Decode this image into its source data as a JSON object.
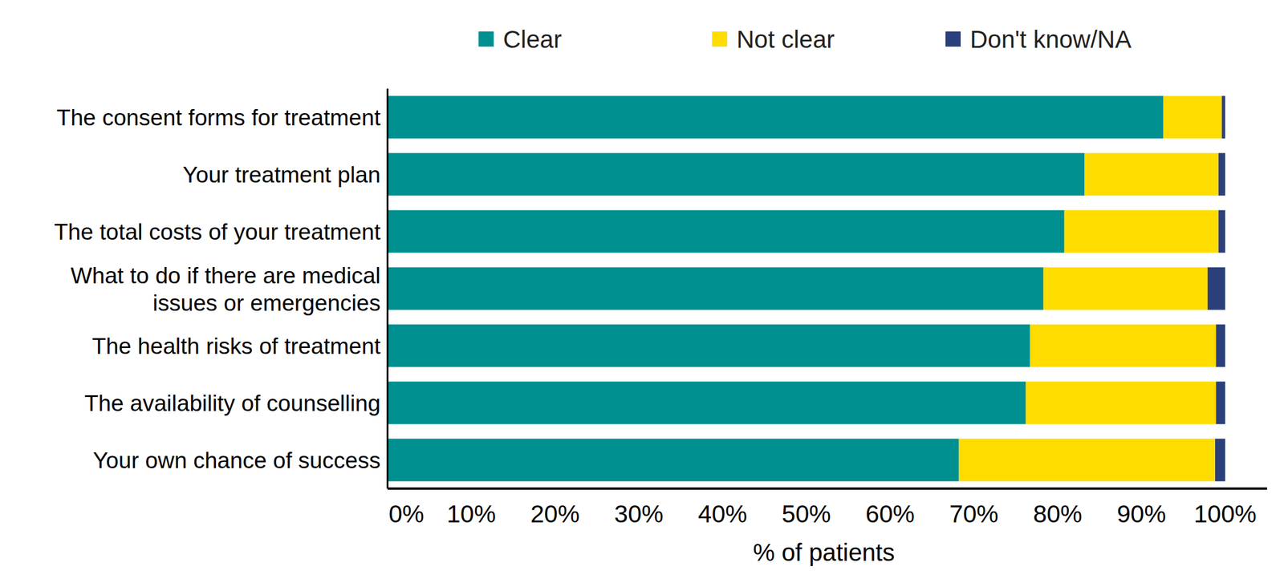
{
  "chart_data": {
    "type": "bar",
    "orientation": "horizontal",
    "stacked": true,
    "categories": [
      "The consent forms for treatment",
      "Your treatment plan",
      "The total costs of your treatment",
      "What to do if there are medical\nissues or emergencies",
      "The health risks of treatment",
      "The availability of counselling",
      "Your own chance of success"
    ],
    "series": [
      {
        "name": "Clear",
        "color": "#00908f",
        "values": [
          92.6,
          83.2,
          80.8,
          78.3,
          76.7,
          76.2,
          68.2
        ]
      },
      {
        "name": "Not clear",
        "color": "#ffdc00",
        "values": [
          7.0,
          16.0,
          18.4,
          19.6,
          22.2,
          22.7,
          30.6
        ]
      },
      {
        "name": "Don't know/NA",
        "color": "#2b3f7a",
        "values": [
          0.4,
          0.8,
          0.8,
          2.1,
          1.1,
          1.1,
          1.2
        ]
      }
    ],
    "x_label": "% of patients",
    "xlim": [
      0,
      105
    ],
    "xticks": [
      {
        "value": 0,
        "label": "0%"
      },
      {
        "value": 10,
        "label": "10%"
      },
      {
        "value": 20,
        "label": "20%"
      },
      {
        "value": 30,
        "label": "30%"
      },
      {
        "value": 40,
        "label": "40%"
      },
      {
        "value": 50,
        "label": "50%"
      },
      {
        "value": 60,
        "label": "60%"
      },
      {
        "value": 70,
        "label": "70%"
      },
      {
        "value": 80,
        "label": "80%"
      },
      {
        "value": 90,
        "label": "90%"
      },
      {
        "value": 100,
        "label": "100%"
      }
    ],
    "legend": "top",
    "grid": false
  }
}
